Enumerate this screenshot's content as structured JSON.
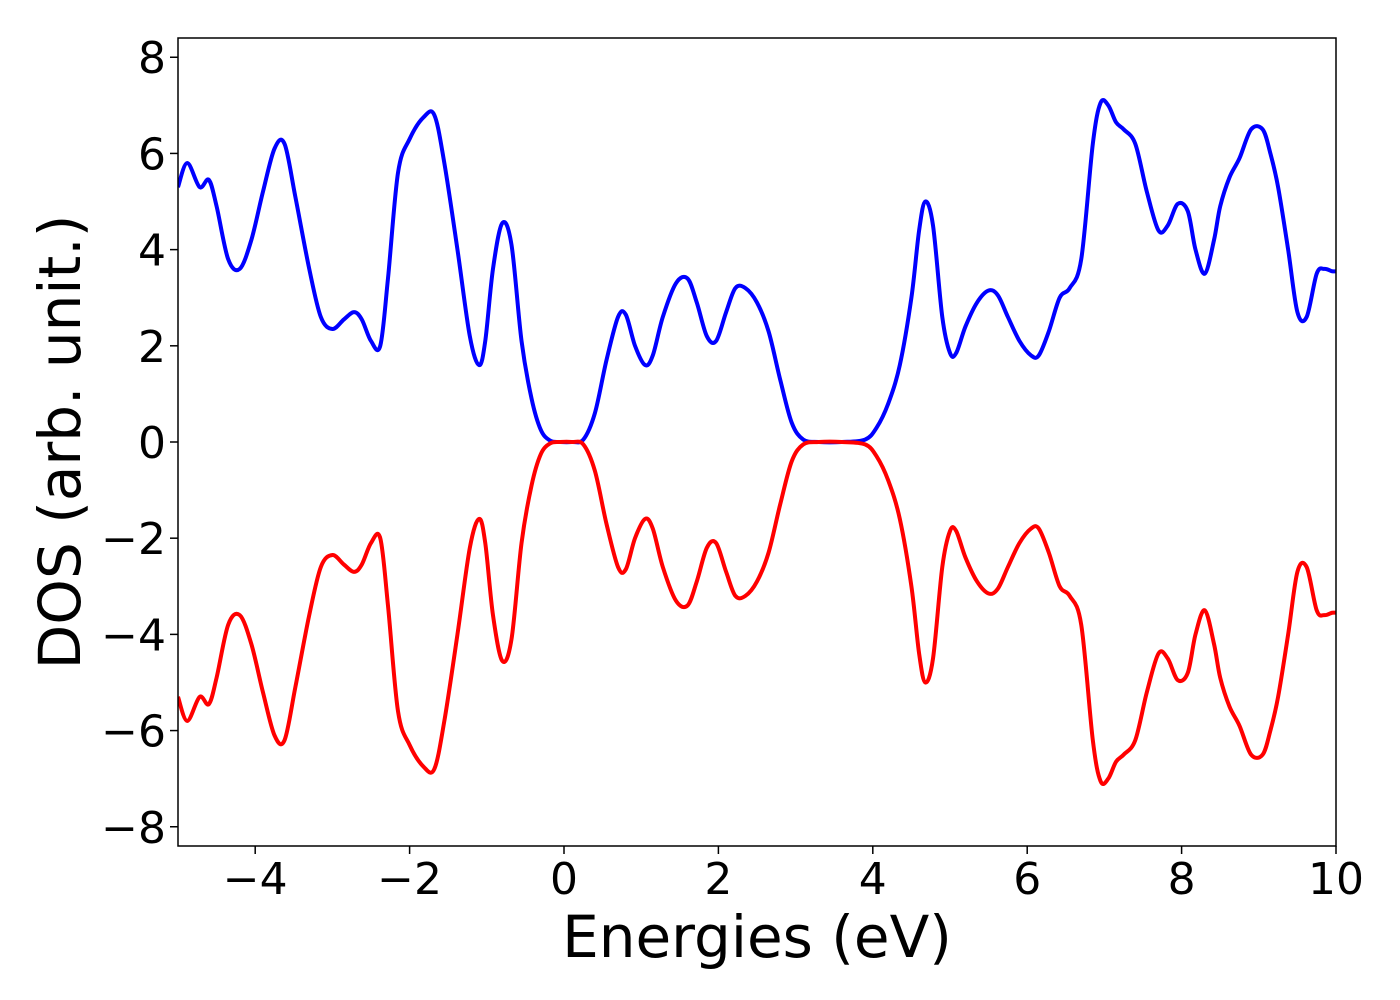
{
  "chart_data": {
    "type": "line",
    "title": "",
    "xlabel": "Energies (eV)",
    "ylabel": "DOS (arb. unit.)",
    "xlim": [
      -5,
      10
    ],
    "ylim": [
      -8.4,
      8.4
    ],
    "grid": false,
    "x_ticks": [
      -4,
      -2,
      0,
      2,
      4,
      6,
      8,
      10
    ],
    "y_ticks": [
      -8,
      -6,
      -4,
      -2,
      0,
      2,
      4,
      6,
      8
    ],
    "series": [
      {
        "color": "#0000ff",
        "x": [
          -5.0,
          -4.88,
          -4.72,
          -4.6,
          -4.5,
          -4.35,
          -4.2,
          -4.05,
          -3.9,
          -3.75,
          -3.62,
          -3.48,
          -3.3,
          -3.15,
          -3.0,
          -2.85,
          -2.72,
          -2.62,
          -2.5,
          -2.38,
          -2.28,
          -2.15,
          -2.0,
          -1.82,
          -1.68,
          -1.55,
          -1.38,
          -1.22,
          -1.1,
          -1.02,
          -0.92,
          -0.8,
          -0.68,
          -0.55,
          -0.42,
          -0.3,
          -0.18,
          -0.05,
          0.1,
          0.25,
          0.4,
          0.55,
          0.7,
          0.8,
          0.92,
          1.05,
          1.15,
          1.28,
          1.45,
          1.6,
          1.72,
          1.85,
          1.97,
          2.1,
          2.22,
          2.35,
          2.5,
          2.65,
          2.8,
          2.95,
          3.1,
          3.3,
          3.6,
          3.9,
          4.05,
          4.2,
          4.35,
          4.5,
          4.6,
          4.68,
          4.78,
          4.9,
          5.0,
          5.08,
          5.2,
          5.35,
          5.5,
          5.62,
          5.75,
          5.9,
          6.05,
          6.15,
          6.28,
          6.42,
          6.55,
          6.7,
          6.85,
          6.95,
          7.05,
          7.15,
          7.25,
          7.4,
          7.55,
          7.7,
          7.82,
          7.95,
          8.08,
          8.18,
          8.3,
          8.42,
          8.5,
          8.62,
          8.75,
          8.9,
          9.05,
          9.15,
          9.25,
          9.38,
          9.5,
          9.62,
          9.75,
          9.85,
          9.95,
          10.0
        ],
        "y": [
          5.3,
          5.8,
          5.3,
          5.45,
          4.9,
          3.8,
          3.6,
          4.2,
          5.2,
          6.1,
          6.2,
          5.1,
          3.6,
          2.6,
          2.35,
          2.55,
          2.7,
          2.55,
          2.1,
          2.0,
          3.4,
          5.6,
          6.3,
          6.75,
          6.8,
          5.8,
          4.0,
          2.2,
          1.6,
          2.1,
          3.6,
          4.55,
          4.1,
          2.1,
          0.9,
          0.25,
          0.03,
          0.0,
          0.0,
          0.05,
          0.6,
          1.7,
          2.6,
          2.65,
          2.0,
          1.6,
          1.8,
          2.6,
          3.3,
          3.4,
          2.9,
          2.2,
          2.1,
          2.7,
          3.2,
          3.2,
          2.9,
          2.3,
          1.3,
          0.4,
          0.05,
          0.0,
          0.0,
          0.05,
          0.3,
          0.8,
          1.6,
          3.0,
          4.4,
          5.0,
          4.5,
          2.6,
          1.85,
          1.85,
          2.4,
          2.9,
          3.15,
          3.05,
          2.6,
          2.1,
          1.8,
          1.8,
          2.3,
          3.0,
          3.2,
          3.8,
          6.2,
          7.05,
          7.0,
          6.65,
          6.5,
          6.2,
          5.2,
          4.4,
          4.5,
          4.95,
          4.8,
          4.0,
          3.5,
          4.2,
          4.9,
          5.5,
          5.9,
          6.5,
          6.5,
          6.0,
          5.3,
          4.0,
          2.7,
          2.6,
          3.5,
          3.6,
          3.55,
          3.55
        ]
      },
      {
        "color": "#ff0000",
        "x": [
          -5.0,
          -4.88,
          -4.72,
          -4.6,
          -4.5,
          -4.35,
          -4.2,
          -4.05,
          -3.9,
          -3.75,
          -3.62,
          -3.48,
          -3.3,
          -3.15,
          -3.0,
          -2.85,
          -2.72,
          -2.62,
          -2.5,
          -2.38,
          -2.28,
          -2.15,
          -2.0,
          -1.82,
          -1.68,
          -1.55,
          -1.38,
          -1.22,
          -1.1,
          -1.02,
          -0.92,
          -0.8,
          -0.68,
          -0.55,
          -0.42,
          -0.3,
          -0.18,
          -0.05,
          0.1,
          0.25,
          0.4,
          0.55,
          0.7,
          0.8,
          0.92,
          1.05,
          1.15,
          1.28,
          1.45,
          1.6,
          1.72,
          1.85,
          1.97,
          2.1,
          2.22,
          2.35,
          2.5,
          2.65,
          2.8,
          2.95,
          3.1,
          3.3,
          3.6,
          3.9,
          4.05,
          4.2,
          4.35,
          4.5,
          4.6,
          4.68,
          4.78,
          4.9,
          5.0,
          5.08,
          5.2,
          5.35,
          5.5,
          5.62,
          5.75,
          5.9,
          6.05,
          6.15,
          6.28,
          6.42,
          6.55,
          6.7,
          6.85,
          6.95,
          7.05,
          7.15,
          7.25,
          7.4,
          7.55,
          7.7,
          7.82,
          7.95,
          8.08,
          8.18,
          8.3,
          8.42,
          8.5,
          8.62,
          8.75,
          8.9,
          9.05,
          9.15,
          9.25,
          9.38,
          9.5,
          9.62,
          9.75,
          9.85,
          9.95,
          10.0
        ],
        "y": [
          -5.3,
          -5.8,
          -5.3,
          -5.45,
          -4.9,
          -3.8,
          -3.6,
          -4.2,
          -5.2,
          -6.1,
          -6.2,
          -5.1,
          -3.6,
          -2.6,
          -2.35,
          -2.55,
          -2.7,
          -2.55,
          -2.1,
          -2.0,
          -3.4,
          -5.6,
          -6.3,
          -6.75,
          -6.8,
          -5.8,
          -4.0,
          -2.2,
          -1.6,
          -2.1,
          -3.6,
          -4.55,
          -4.1,
          -2.1,
          -0.9,
          -0.25,
          -0.03,
          0.0,
          0.0,
          -0.05,
          -0.6,
          -1.7,
          -2.6,
          -2.65,
          -2.0,
          -1.6,
          -1.8,
          -2.6,
          -3.3,
          -3.4,
          -2.9,
          -2.2,
          -2.1,
          -2.7,
          -3.2,
          -3.2,
          -2.9,
          -2.3,
          -1.3,
          -0.4,
          -0.05,
          0.0,
          0.0,
          -0.05,
          -0.3,
          -0.8,
          -1.6,
          -3.0,
          -4.4,
          -5.0,
          -4.5,
          -2.6,
          -1.85,
          -1.85,
          -2.4,
          -2.9,
          -3.15,
          -3.05,
          -2.6,
          -2.1,
          -1.8,
          -1.8,
          -2.3,
          -3.0,
          -3.2,
          -3.8,
          -6.2,
          -7.05,
          -7.0,
          -6.65,
          -6.5,
          -6.2,
          -5.2,
          -4.4,
          -4.5,
          -4.95,
          -4.8,
          -4.0,
          -3.5,
          -4.2,
          -4.9,
          -5.5,
          -5.9,
          -6.5,
          -6.5,
          -6.0,
          -5.3,
          -4.0,
          -2.7,
          -2.6,
          -3.5,
          -3.6,
          -3.55,
          -3.55
        ]
      }
    ]
  }
}
